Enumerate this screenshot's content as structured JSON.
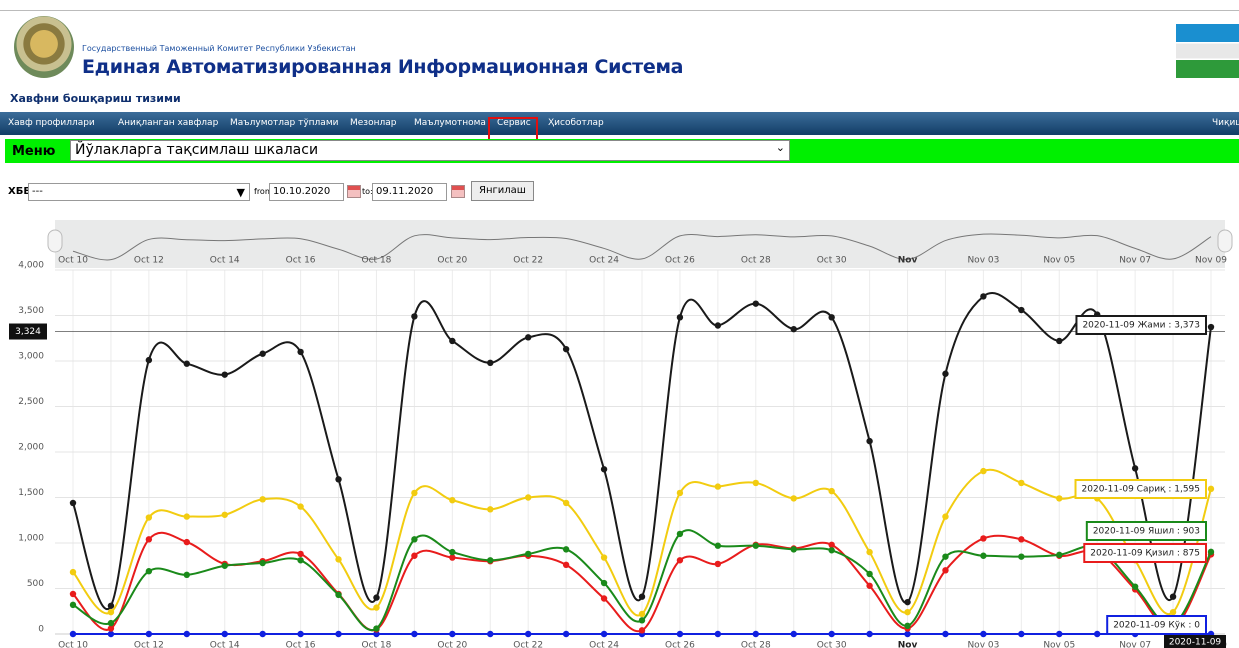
{
  "header": {
    "org": "Государственный Таможенный Комитет Республики Узбекистан",
    "system": "Единая Автоматизированная Информационная Система",
    "subsystem": "Хавфни бошқариш тизими"
  },
  "nav": {
    "items": [
      "Хавф профиллари",
      "Аниқланган хавфлар",
      "Маълумотлар тўплами",
      "Мезонлар",
      "Маълумотнома",
      "Сервис",
      "Ҳисоботлар"
    ],
    "logout": "Чиқиш"
  },
  "menu": {
    "label": "Меню",
    "selected": "Йўлакларга тақсимлаш шкаласи"
  },
  "filter": {
    "label": "ХББ:",
    "select": "---",
    "from_label": "from:",
    "from": "10.10.2020",
    "to_label": "to:",
    "to": "09.11.2020",
    "button": "Янгилаш"
  },
  "chart_data": {
    "type": "line",
    "categories": [
      "Oct 10",
      null,
      "Oct 12",
      null,
      "Oct 14",
      null,
      "Oct 16",
      null,
      "Oct 18",
      null,
      "Oct 20",
      null,
      "Oct 22",
      null,
      "Oct 24",
      null,
      "Oct 26",
      null,
      "Oct 28",
      null,
      "Oct 30",
      null,
      "Nov",
      null,
      "Nov 03",
      null,
      "Nov 05",
      null,
      "Nov 07",
      null,
      "Nov 09"
    ],
    "series": [
      {
        "name": "Жами",
        "color": "#1a1a1a",
        "values": [
          1440,
          310,
          3010,
          2970,
          2850,
          3080,
          3100,
          1700,
          400,
          3490,
          3220,
          2980,
          3260,
          3130,
          1810,
          410,
          3480,
          3390,
          3630,
          3350,
          3480,
          2120,
          350,
          2860,
          3710,
          3560,
          3220,
          3510,
          1820,
          410,
          3373
        ]
      },
      {
        "name": "Сариқ",
        "color": "#f2cc10",
        "values": [
          680,
          240,
          1280,
          1290,
          1310,
          1480,
          1400,
          820,
          290,
          1550,
          1470,
          1370,
          1500,
          1440,
          840,
          220,
          1550,
          1620,
          1660,
          1490,
          1570,
          900,
          240,
          1290,
          1790,
          1660,
          1490,
          1490,
          810,
          240,
          1595
        ]
      },
      {
        "name": "Яшил",
        "color": "#1a8a1a",
        "values": [
          320,
          120,
          690,
          650,
          750,
          780,
          810,
          430,
          60,
          1040,
          900,
          810,
          880,
          930,
          560,
          150,
          1100,
          970,
          970,
          930,
          920,
          660,
          90,
          850,
          860,
          850,
          870,
          950,
          520,
          100,
          903
        ]
      },
      {
        "name": "Қизил",
        "color": "#e81c1c",
        "values": [
          440,
          60,
          1040,
          1010,
          770,
          800,
          880,
          440,
          50,
          860,
          840,
          800,
          860,
          760,
          390,
          40,
          810,
          770,
          980,
          940,
          980,
          530,
          60,
          700,
          1050,
          1040,
          860,
          900,
          490,
          60,
          875
        ]
      },
      {
        "name": "Кўк",
        "color": "#1020e0",
        "values": [
          0,
          0,
          0,
          0,
          0,
          0,
          0,
          0,
          0,
          0,
          0,
          0,
          0,
          0,
          0,
          0,
          0,
          0,
          0,
          0,
          0,
          0,
          0,
          0,
          0,
          0,
          0,
          0,
          0,
          0,
          0
        ]
      }
    ],
    "ylim": [
      0,
      4000
    ],
    "yticks": [
      0,
      500,
      {
        "value": 1000,
        "label": "1,000"
      },
      {
        "value": 1500,
        "label": "1,500"
      },
      {
        "value": 2000,
        "label": "2,000"
      },
      {
        "value": 2500,
        "label": "2,500"
      },
      {
        "value": 3000,
        "label": "3,000"
      },
      {
        "value": 3500,
        "label": "3,500"
      },
      {
        "value": 4000,
        "label": "4,000"
      }
    ],
    "grid": true,
    "crosshair": {
      "y_value": 3324,
      "y_label": "3,324",
      "x_label": "2020-11-09"
    },
    "tooltips": [
      "2020-11-09 Жами : 3,373",
      "2020-11-09 Сариқ : 1,595",
      "2020-11-09 Яшил : 903",
      "2020-11-09 Қизил : 875",
      "2020-11-09 Кўк : 0"
    ]
  }
}
